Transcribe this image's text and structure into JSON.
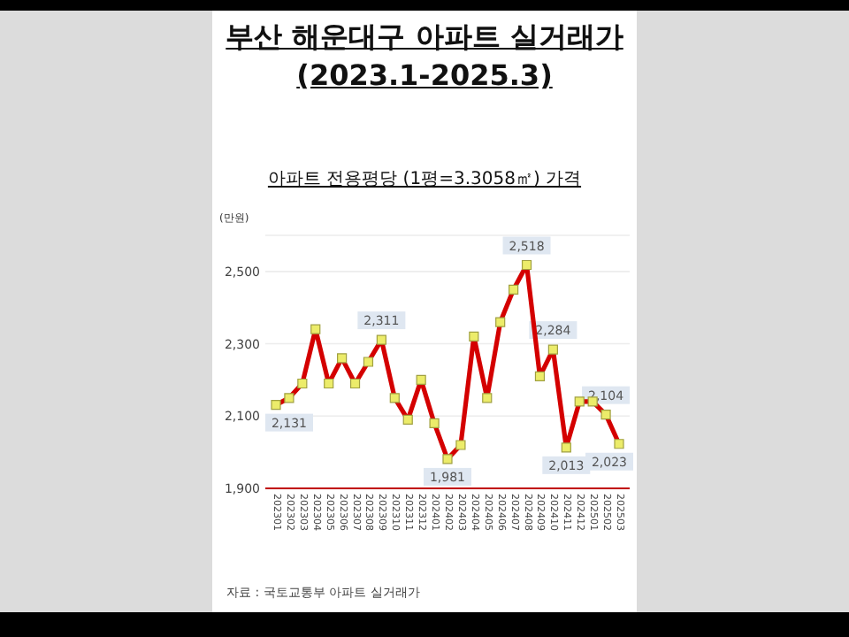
{
  "chart_data": {
    "type": "line",
    "title": "부산 해운대구 아파트 실거래가 (2023.1-2025.3)",
    "subtitle": "아파트 전용평당 (1평=3.3058㎡) 가격",
    "ylabel": "(만원)",
    "annotations": [
      "자료 : 국토교통부 아파트 실거래가"
    ],
    "categories": [
      "202301",
      "202302",
      "202303",
      "202304",
      "202305",
      "202306",
      "202307",
      "202308",
      "202309",
      "202310",
      "202311",
      "202312",
      "202401",
      "202402",
      "202403",
      "202404",
      "202405",
      "202406",
      "202407",
      "202408",
      "202409",
      "202410",
      "202411",
      "202412",
      "202501",
      "202502",
      "202503"
    ],
    "series": [
      {
        "color": "#d40000",
        "values": [
          2131,
          2150,
          2190,
          2340,
          2190,
          2260,
          2190,
          2250,
          2311,
          2150,
          2090,
          2200,
          2080,
          1981,
          2020,
          2320,
          2150,
          2360,
          2450,
          2518,
          2210,
          2284,
          2013,
          2140,
          2140,
          2104,
          2023
        ],
        "value_labels": [
          "2,131",
          null,
          null,
          null,
          null,
          null,
          null,
          null,
          "2,311",
          null,
          null,
          null,
          null,
          "1,981",
          null,
          null,
          null,
          null,
          null,
          "2,518",
          null,
          "2,284",
          "2,013",
          null,
          null,
          "2,104",
          "2,023"
        ]
      }
    ],
    "marker": "square",
    "ylim": [
      1900,
      2600
    ],
    "yticks": [
      {
        "value": 1900,
        "label": "1,900"
      },
      {
        "value": 2100,
        "label": "2,100"
      },
      {
        "value": 2300,
        "label": "2,300"
      },
      {
        "value": 2500,
        "label": "2,500"
      }
    ],
    "grid": "y"
  }
}
